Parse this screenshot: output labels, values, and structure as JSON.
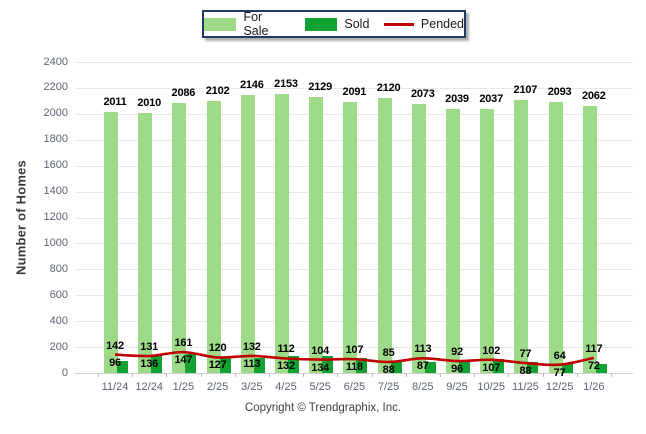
{
  "legend": {
    "items": [
      {
        "label": "For Sale",
        "swatch": "light-green-rect"
      },
      {
        "label": "Sold",
        "swatch": "dark-green-rect"
      },
      {
        "label": "Pended",
        "swatch": "red-line"
      }
    ]
  },
  "footer": {
    "copyright": "Copyright © Trendgraphix, Inc."
  },
  "colors": {
    "for_sale": "#9EDB88",
    "sold": "#12A232",
    "pended": "#C00000",
    "legend_border": "#1F3B66",
    "grid": "#E8E8E8",
    "baseline": "#CFCFCF",
    "axis_text": "#5A6470",
    "tick_mark": "#BFBFBF"
  },
  "chart_data": {
    "type": "bar",
    "categories": [
      "11/24",
      "12/24",
      "1/25",
      "2/25",
      "3/25",
      "4/25",
      "5/25",
      "6/25",
      "7/25",
      "8/25",
      "9/25",
      "10/25",
      "11/25",
      "12/25",
      "1/26"
    ],
    "series": [
      {
        "name": "For Sale",
        "type": "bar",
        "values": [
          2011,
          2010,
          2086,
          2102,
          2146,
          2153,
          2129,
          2091,
          2120,
          2073,
          2039,
          2037,
          2107,
          2093,
          2062
        ]
      },
      {
        "name": "Sold",
        "type": "bar",
        "values": [
          96,
          136,
          147,
          127,
          113,
          132,
          134,
          118,
          88,
          87,
          96,
          107,
          88,
          77,
          72
        ]
      },
      {
        "name": "Pended",
        "type": "line",
        "values": [
          142,
          131,
          161,
          120,
          132,
          112,
          104,
          107,
          85,
          113,
          92,
          102,
          77,
          64,
          117
        ]
      }
    ],
    "title": "",
    "xlabel": "",
    "ylabel": "Number of Homes",
    "ylim": [
      0,
      2400
    ],
    "yticks": [
      0,
      200,
      400,
      600,
      800,
      1000,
      1200,
      1400,
      1600,
      1800,
      2000,
      2200,
      2400
    ],
    "grid": true,
    "legend_position": "top"
  }
}
